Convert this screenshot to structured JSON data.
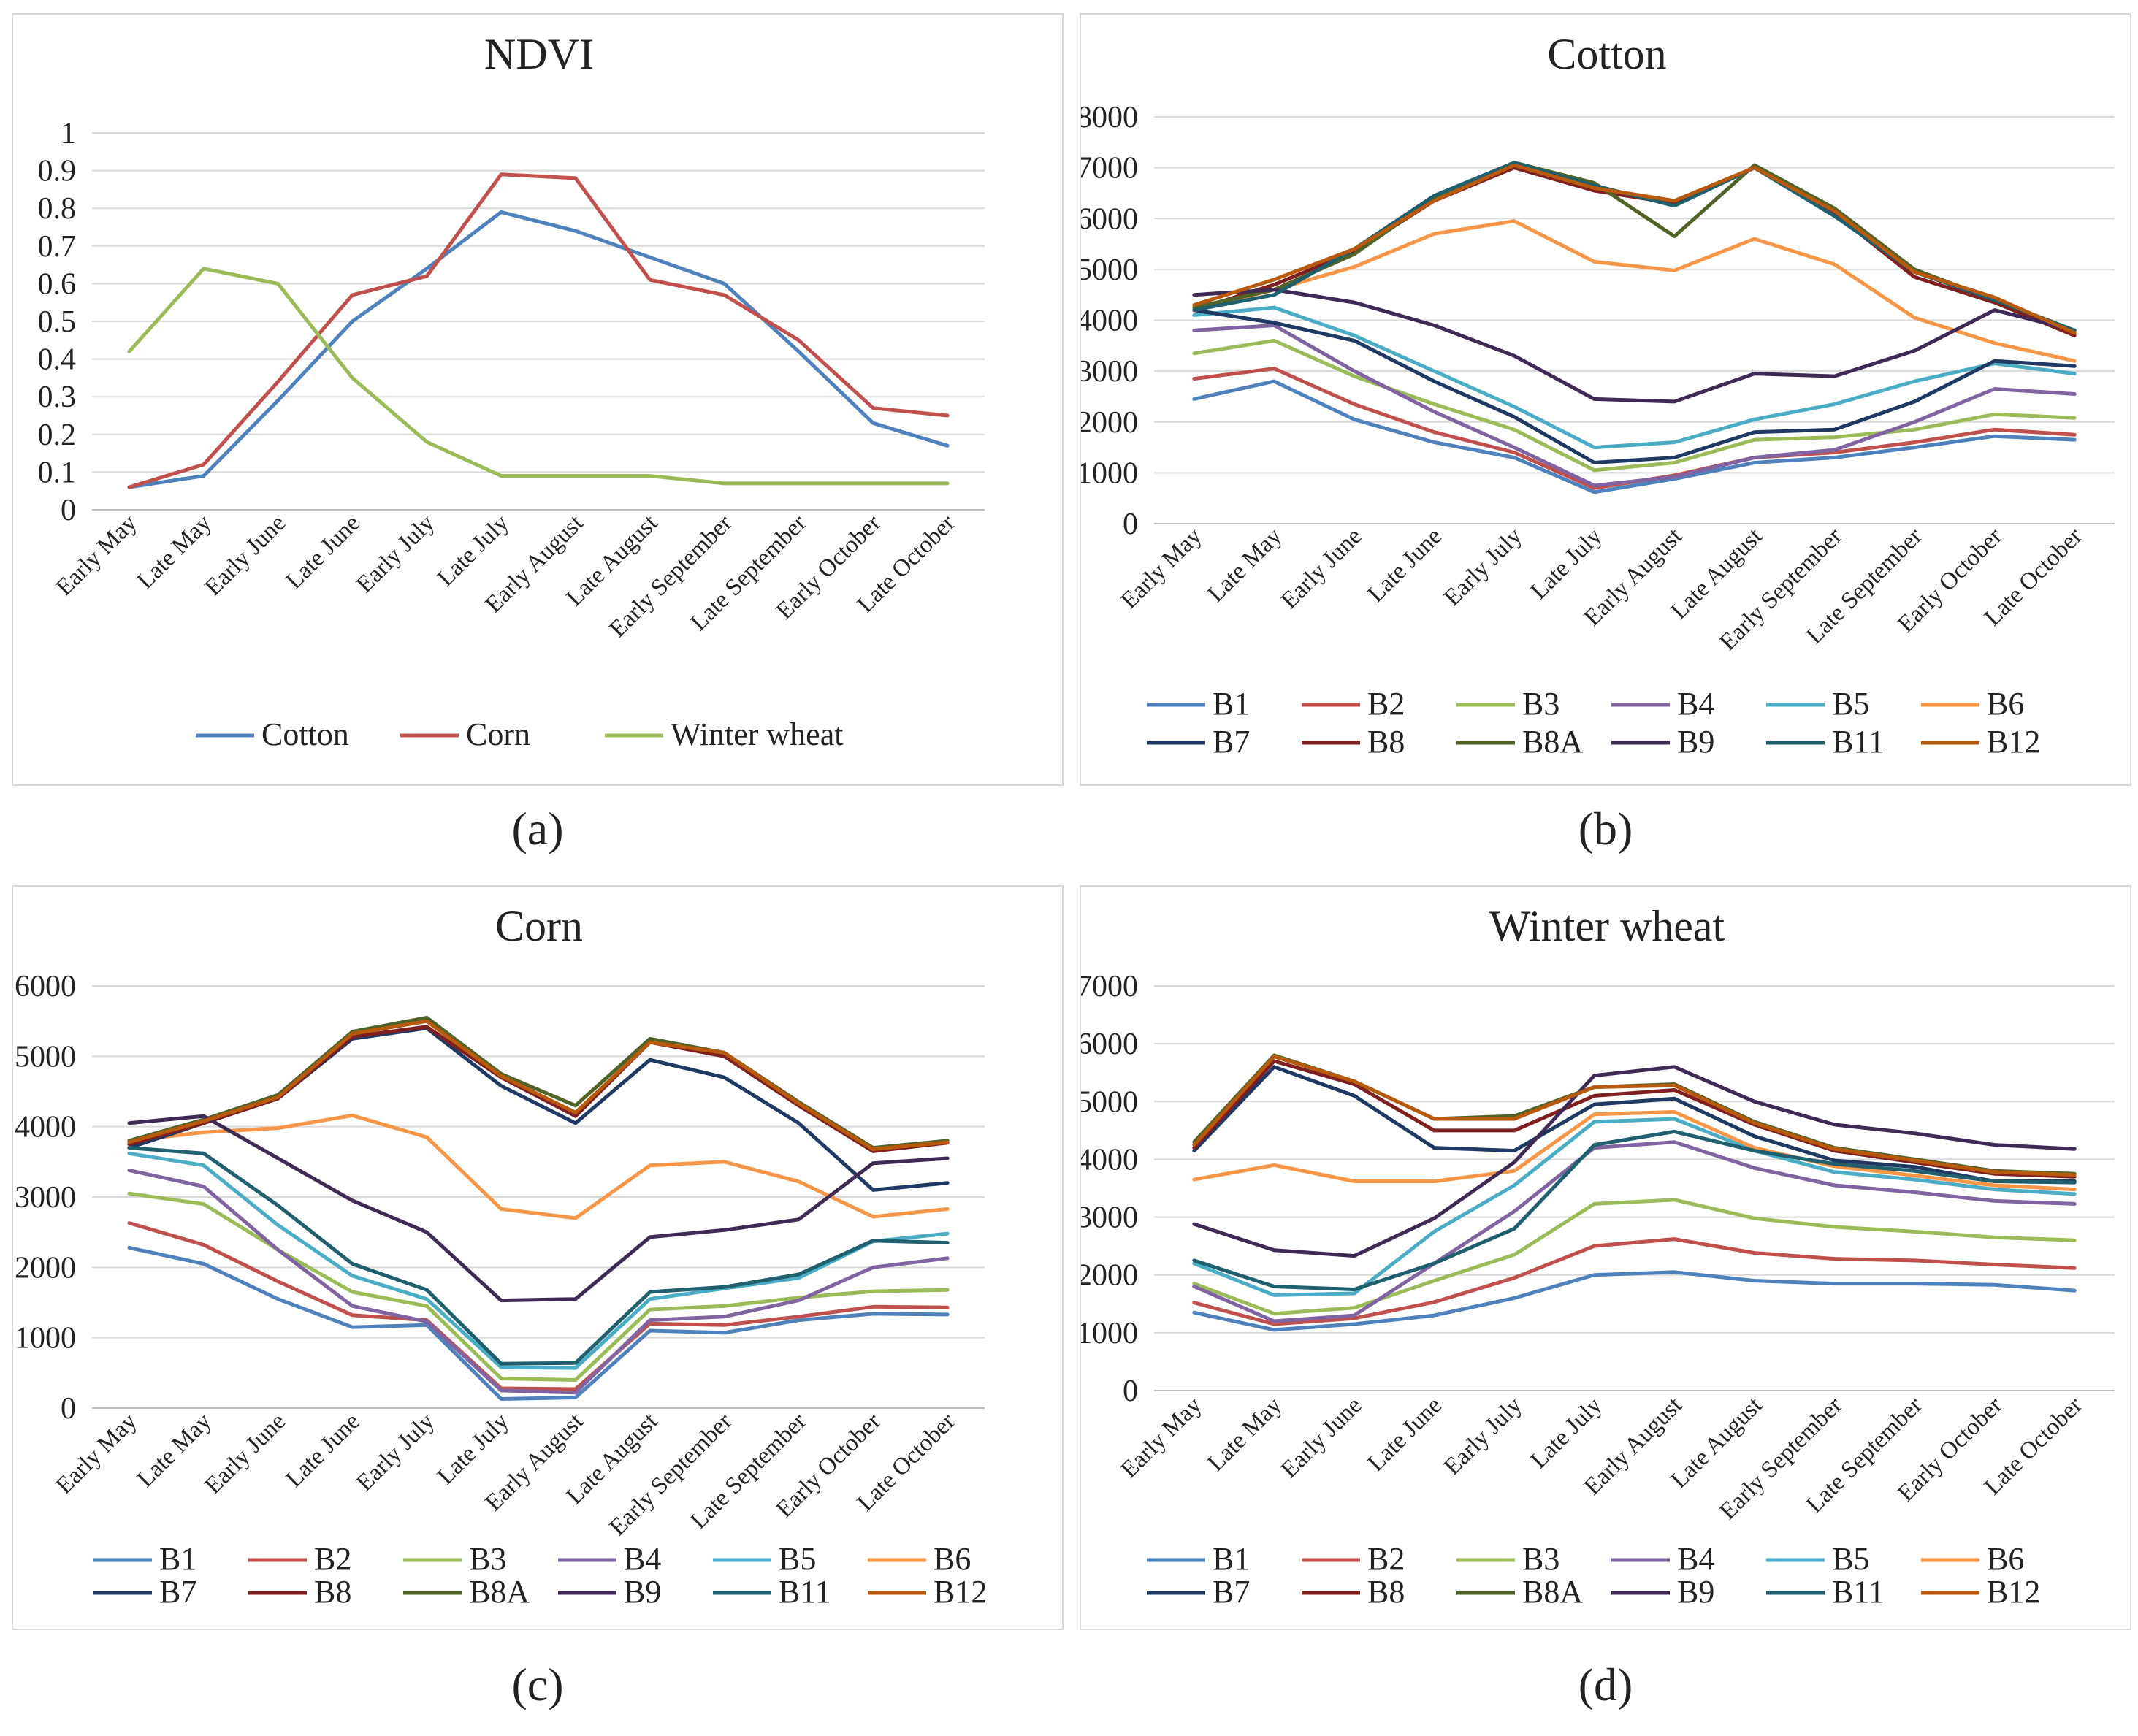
{
  "captions": [
    "(a)",
    "(b)",
    "(c)",
    "(d)"
  ],
  "colors": {
    "B1": "#4f81bd",
    "B2": "#c0504d",
    "B3": "#9bbb59",
    "B4": "#8064a2",
    "B5": "#4bacc6",
    "B6": "#f79646",
    "B7": "#1f3864",
    "B8": "#7f1f1f",
    "B8A": "#4f6228",
    "B9": "#3f2a55",
    "B11": "#1f5f6e",
    "B12": "#b85a0d",
    "Cotton": "#4f81bd",
    "Corn": "#c0504d",
    "Winter wheat": "#9bbb59"
  },
  "chart_data": [
    {
      "type": "line",
      "title": "NDVI",
      "categories": [
        "Early May",
        "Late May",
        "Early June",
        "Late June",
        "Early July",
        "Late July",
        "Early August",
        "Late August",
        "Early September",
        "Late September",
        "Early October",
        "Late October"
      ],
      "ylim": [
        0,
        1
      ],
      "yticks": [
        "0",
        "0.1",
        "0.2",
        "0.3",
        "0.4",
        "0.5",
        "0.6",
        "0.7",
        "0.8",
        "0.9",
        "1"
      ],
      "legend_cols": 3,
      "series": [
        {
          "name": "Cotton",
          "values": [
            0.06,
            0.09,
            0.29,
            0.5,
            0.64,
            0.79,
            0.74,
            0.67,
            0.6,
            0.42,
            0.23,
            0.17
          ]
        },
        {
          "name": "Corn",
          "values": [
            0.06,
            0.12,
            0.34,
            0.57,
            0.62,
            0.89,
            0.88,
            0.61,
            0.57,
            0.45,
            0.27,
            0.25
          ]
        },
        {
          "name": "Winter wheat",
          "values": [
            0.42,
            0.64,
            0.6,
            0.35,
            0.18,
            0.09,
            0.09,
            0.09,
            0.07,
            0.07,
            0.07,
            0.07
          ]
        }
      ]
    },
    {
      "type": "line",
      "title": "Cotton",
      "categories": [
        "Early May",
        "Late May",
        "Early June",
        "Late June",
        "Early July",
        "Late July",
        "Early August",
        "Late August",
        "Early September",
        "Late September",
        "Early October",
        "Late October"
      ],
      "ylim": [
        0,
        8000
      ],
      "yticks": [
        "0",
        "1000",
        "2000",
        "3000",
        "4000",
        "5000",
        "6000",
        "7000",
        "8000"
      ],
      "legend_cols": 6,
      "series": [
        {
          "name": "B1",
          "values": [
            2450,
            2800,
            2050,
            1600,
            1300,
            620,
            880,
            1200,
            1300,
            1500,
            1720,
            1650
          ]
        },
        {
          "name": "B2",
          "values": [
            2850,
            3050,
            2350,
            1800,
            1400,
            700,
            950,
            1300,
            1400,
            1600,
            1850,
            1750
          ]
        },
        {
          "name": "B3",
          "values": [
            3350,
            3600,
            2900,
            2350,
            1850,
            1050,
            1200,
            1650,
            1700,
            1850,
            2150,
            2080
          ]
        },
        {
          "name": "B4",
          "values": [
            3800,
            3900,
            3000,
            2200,
            1500,
            750,
            920,
            1300,
            1450,
            2000,
            2650,
            2550
          ]
        },
        {
          "name": "B5",
          "values": [
            4100,
            4250,
            3700,
            3000,
            2300,
            1500,
            1600,
            2050,
            2350,
            2800,
            3150,
            2950
          ]
        },
        {
          "name": "B6",
          "values": [
            4200,
            4600,
            5050,
            5700,
            5950,
            5150,
            4980,
            5600,
            5100,
            4050,
            3550,
            3200
          ]
        },
        {
          "name": "B7",
          "values": [
            4200,
            3950,
            3600,
            2800,
            2100,
            1200,
            1300,
            1800,
            1850,
            2400,
            3200,
            3100
          ]
        },
        {
          "name": "B8",
          "values": [
            4200,
            4700,
            5350,
            6350,
            7000,
            6550,
            6300,
            7000,
            6100,
            4850,
            4350,
            3700
          ]
        },
        {
          "name": "B8A",
          "values": [
            4250,
            4600,
            5300,
            6400,
            7100,
            6700,
            5650,
            7050,
            6200,
            5000,
            4400,
            3800
          ]
        },
        {
          "name": "B9",
          "values": [
            4500,
            4600,
            4350,
            3900,
            3300,
            2450,
            2400,
            2950,
            2900,
            3400,
            4200,
            3800
          ]
        },
        {
          "name": "B11",
          "values": [
            4200,
            4500,
            5400,
            6450,
            7100,
            6650,
            6250,
            7000,
            6050,
            4950,
            4400,
            3800
          ]
        },
        {
          "name": "B12",
          "values": [
            4300,
            4800,
            5400,
            6350,
            7050,
            6600,
            6350,
            7000,
            6150,
            4950,
            4450,
            3750
          ]
        }
      ]
    },
    {
      "type": "line",
      "title": "Corn",
      "categories": [
        "Early May",
        "Late May",
        "Early June",
        "Late June",
        "Early July",
        "Late July",
        "Early August",
        "Late August",
        "Early September",
        "Late September",
        "Early October",
        "Late October"
      ],
      "ylim": [
        0,
        6000
      ],
      "yticks": [
        "0",
        "1000",
        "2000",
        "3000",
        "4000",
        "5000",
        "6000"
      ],
      "legend_cols": 6,
      "series": [
        {
          "name": "B1",
          "values": [
            2280,
            2050,
            1550,
            1150,
            1180,
            130,
            150,
            1100,
            1070,
            1250,
            1340,
            1330
          ]
        },
        {
          "name": "B2",
          "values": [
            2630,
            2320,
            1800,
            1320,
            1250,
            280,
            270,
            1200,
            1180,
            1300,
            1440,
            1430
          ]
        },
        {
          "name": "B3",
          "values": [
            3050,
            2900,
            2250,
            1650,
            1450,
            420,
            400,
            1400,
            1450,
            1570,
            1660,
            1680
          ]
        },
        {
          "name": "B4",
          "values": [
            3380,
            3150,
            2250,
            1450,
            1230,
            250,
            220,
            1250,
            1300,
            1530,
            2000,
            2130
          ]
        },
        {
          "name": "B5",
          "values": [
            3620,
            3450,
            2600,
            1880,
            1550,
            580,
            570,
            1550,
            1700,
            1850,
            2370,
            2480
          ]
        },
        {
          "name": "B6",
          "values": [
            3800,
            3920,
            3980,
            4160,
            3850,
            2830,
            2700,
            3450,
            3500,
            3220,
            2720,
            2830
          ]
        },
        {
          "name": "B7",
          "values": [
            3700,
            4050,
            4400,
            5250,
            5400,
            4580,
            4050,
            4950,
            4700,
            4050,
            3100,
            3200
          ]
        },
        {
          "name": "B8",
          "values": [
            3750,
            4050,
            4400,
            5280,
            5420,
            4700,
            4150,
            5200,
            5000,
            4300,
            3650,
            3770
          ]
        },
        {
          "name": "B8A",
          "values": [
            3800,
            4100,
            4450,
            5350,
            5550,
            4750,
            4300,
            5250,
            5050,
            4350,
            3700,
            3800
          ]
        },
        {
          "name": "B9",
          "values": [
            4050,
            4150,
            3550,
            2950,
            2500,
            1530,
            1550,
            2430,
            2530,
            2680,
            3480,
            3550
          ]
        },
        {
          "name": "B11",
          "values": [
            3700,
            3620,
            2880,
            2050,
            1680,
            630,
            640,
            1650,
            1720,
            1900,
            2380,
            2350
          ]
        },
        {
          "name": "B12",
          "values": [
            3780,
            4080,
            4420,
            5320,
            5500,
            4720,
            4200,
            5200,
            5050,
            4330,
            3680,
            3780
          ]
        }
      ]
    },
    {
      "type": "line",
      "title": "Winter wheat",
      "categories": [
        "Early May",
        "Late May",
        "Early June",
        "Late June",
        "Early July",
        "Late July",
        "Early August",
        "Late August",
        "Early September",
        "Late September",
        "Early October",
        "Late October"
      ],
      "ylim": [
        0,
        7000
      ],
      "yticks": [
        "0",
        "1000",
        "2000",
        "3000",
        "4000",
        "5000",
        "6000",
        "7000"
      ],
      "legend_cols": 6,
      "series": [
        {
          "name": "B1",
          "values": [
            1350,
            1050,
            1150,
            1300,
            1600,
            2000,
            2050,
            1900,
            1850,
            1850,
            1830,
            1730
          ]
        },
        {
          "name": "B2",
          "values": [
            1520,
            1150,
            1250,
            1530,
            1950,
            2500,
            2620,
            2380,
            2280,
            2250,
            2180,
            2120
          ]
        },
        {
          "name": "B3",
          "values": [
            1850,
            1330,
            1430,
            1900,
            2350,
            3230,
            3300,
            2980,
            2830,
            2750,
            2650,
            2600
          ]
        },
        {
          "name": "B4",
          "values": [
            1800,
            1200,
            1300,
            2200,
            3100,
            4200,
            4300,
            3850,
            3550,
            3430,
            3280,
            3230
          ]
        },
        {
          "name": "B5",
          "values": [
            2200,
            1650,
            1680,
            2750,
            3550,
            4650,
            4700,
            4150,
            3780,
            3650,
            3480,
            3400
          ]
        },
        {
          "name": "B6",
          "values": [
            3650,
            3900,
            3620,
            3620,
            3800,
            4780,
            4820,
            4200,
            3880,
            3720,
            3550,
            3480
          ]
        },
        {
          "name": "B7",
          "values": [
            4150,
            5600,
            5100,
            4200,
            4150,
            4950,
            5050,
            4400,
            3980,
            3870,
            3620,
            3620
          ]
        },
        {
          "name": "B8",
          "values": [
            4200,
            5700,
            5300,
            4500,
            4500,
            5100,
            5200,
            4600,
            4150,
            3950,
            3750,
            3700
          ]
        },
        {
          "name": "B8A",
          "values": [
            4300,
            5800,
            5350,
            4700,
            4750,
            5250,
            5300,
            4650,
            4200,
            4000,
            3800,
            3750
          ]
        },
        {
          "name": "B9",
          "values": [
            2880,
            2430,
            2330,
            2980,
            3950,
            5450,
            5600,
            5000,
            4600,
            4450,
            4250,
            4180
          ]
        },
        {
          "name": "B11",
          "values": [
            2250,
            1800,
            1750,
            2200,
            2800,
            4250,
            4480,
            4150,
            3920,
            3800,
            3620,
            3600
          ]
        },
        {
          "name": "B12",
          "values": [
            4250,
            5780,
            5350,
            4700,
            4700,
            5250,
            5280,
            4630,
            4180,
            3980,
            3780,
            3730
          ]
        }
      ]
    }
  ]
}
